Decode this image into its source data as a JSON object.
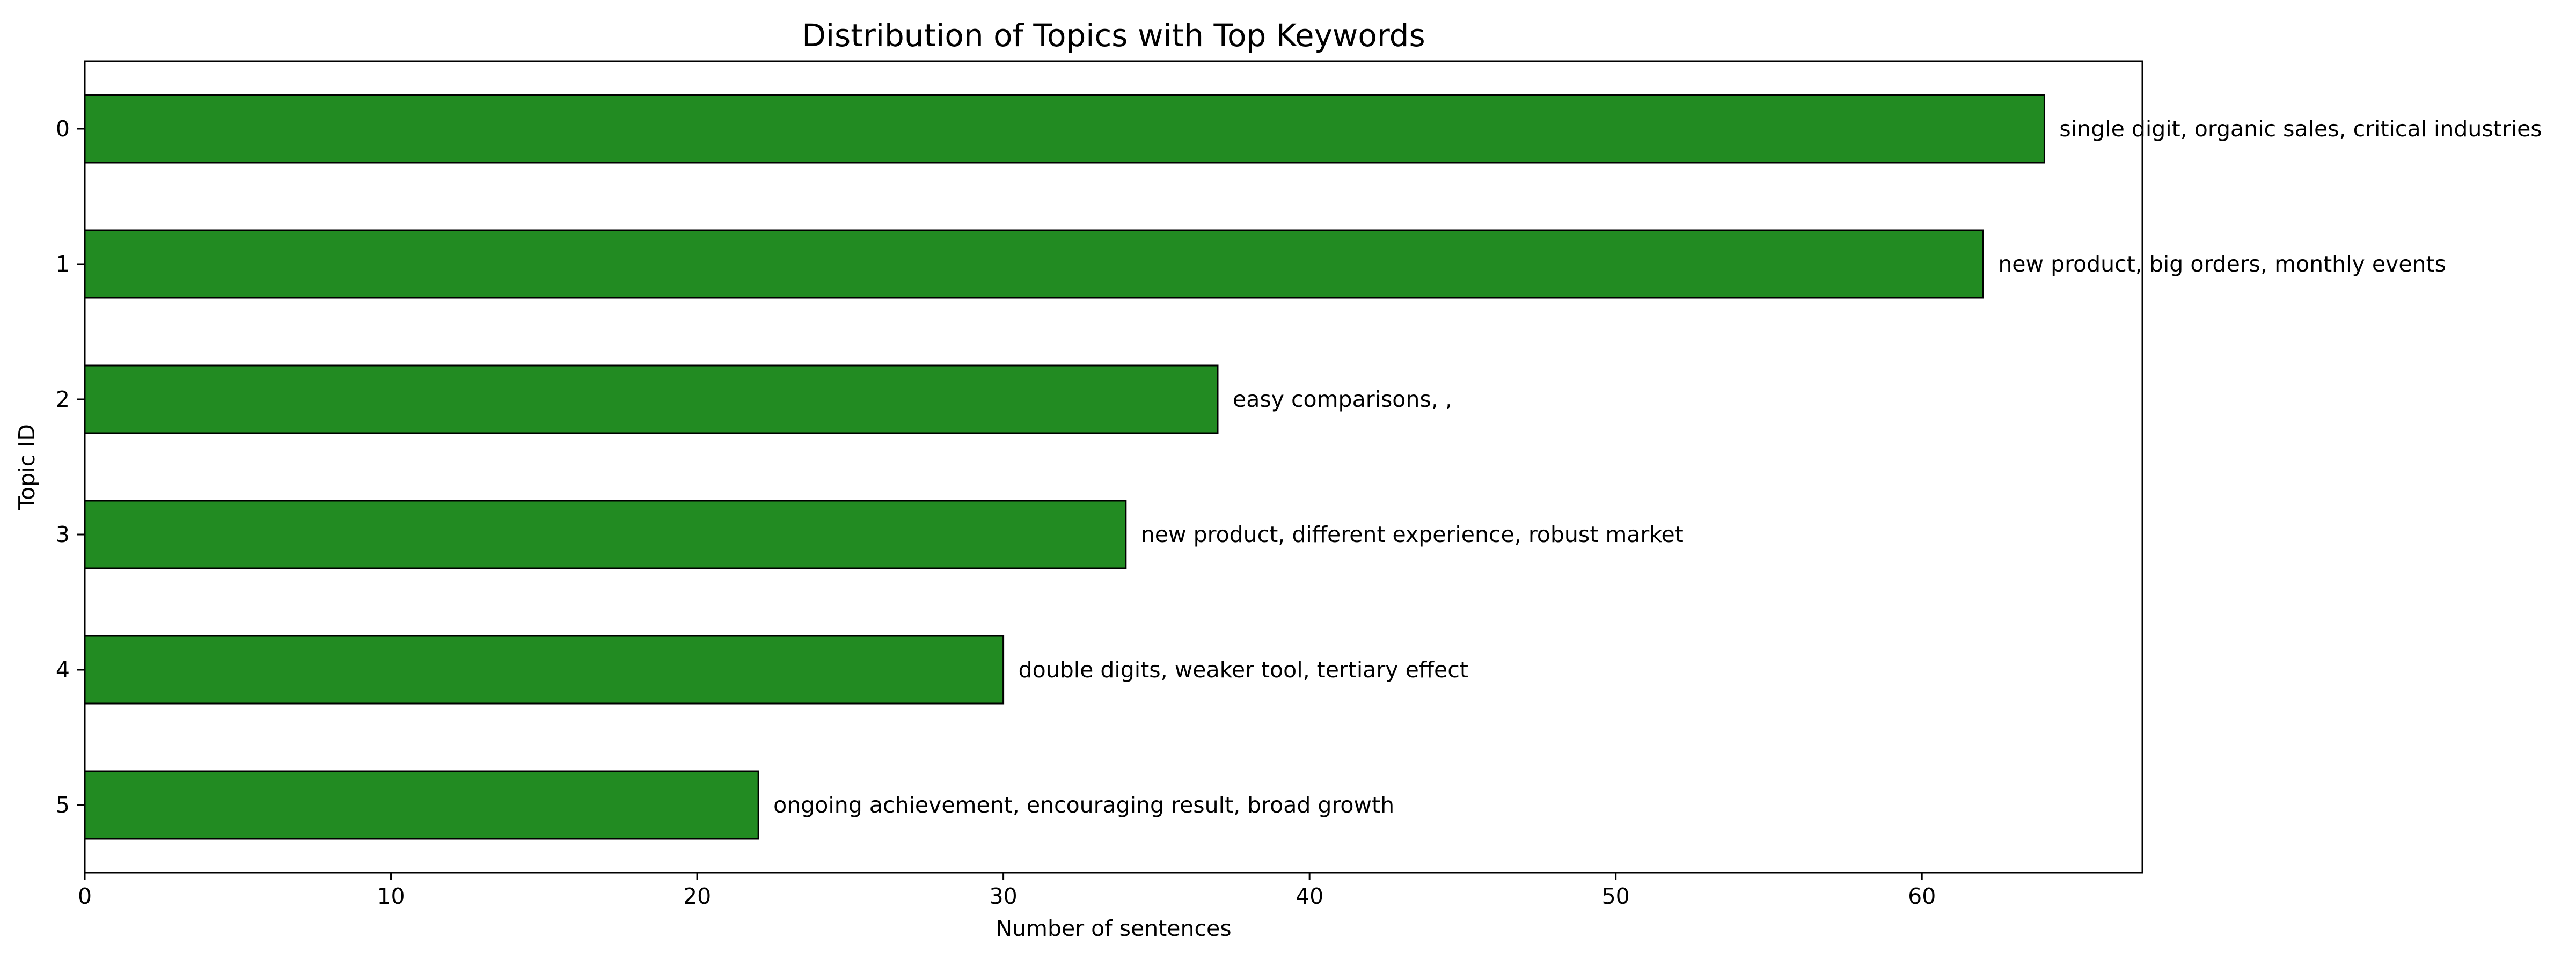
{
  "chart_data": {
    "type": "bar",
    "orientation": "horizontal",
    "title": "Distribution of Topics with Top Keywords",
    "xlabel": "Number of sentences",
    "ylabel": "Topic ID",
    "categories": [
      "0",
      "1",
      "2",
      "3",
      "4",
      "5"
    ],
    "values": [
      64,
      62,
      37,
      34,
      30,
      22
    ],
    "bar_labels": [
      "single digit, organic sales, critical industries",
      "new product, big orders, monthly events",
      "easy comparisons, ,",
      "new product, different experience, robust market",
      "double digits, weaker tool, tertiary effect",
      "ongoing achievement, encouraging result, broad growth"
    ],
    "xlim": [
      0,
      67.2
    ],
    "xticks": [
      "0",
      "10",
      "20",
      "30",
      "40",
      "50",
      "60"
    ],
    "grid": false,
    "legend": false,
    "bar_color": "#228b22",
    "edge_color": "#000000"
  }
}
